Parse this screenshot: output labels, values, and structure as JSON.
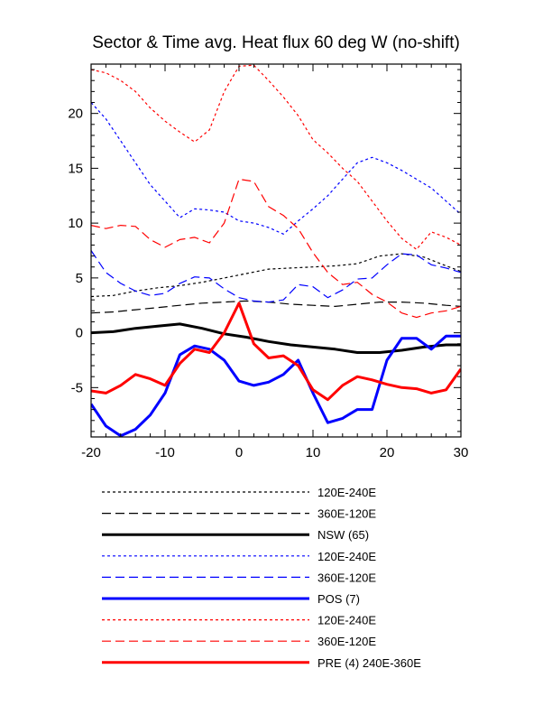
{
  "chart_data": {
    "type": "line",
    "title": "Sector & Time avg. Heat flux 60 deg W (no-shift)",
    "xlabel": "",
    "ylabel": "",
    "xlim": [
      -20,
      30
    ],
    "ylim": [
      -9.5,
      24.5
    ],
    "xticks": [
      -20,
      -10,
      0,
      10,
      20,
      30
    ],
    "yticks": [
      -5,
      0,
      5,
      10,
      15,
      20
    ],
    "grid": false,
    "legend_position": "below",
    "series": [
      {
        "label": "120E-240E",
        "color": "#000000",
        "style": "dotted",
        "width": 1.2,
        "x": [
          -20,
          -17,
          -14,
          -11,
          -8,
          -5,
          -2,
          1,
          4,
          7,
          10,
          13,
          16,
          19,
          22,
          25,
          28,
          30
        ],
        "y": [
          3.3,
          3.4,
          3.8,
          4.1,
          4.3,
          4.6,
          5.0,
          5.4,
          5.8,
          5.9,
          6.0,
          6.1,
          6.3,
          7.0,
          7.2,
          6.9,
          6.1,
          5.6
        ]
      },
      {
        "label": "360E-120E",
        "color": "#000000",
        "style": "dashed",
        "width": 1.2,
        "x": [
          -20,
          -17,
          -14,
          -11,
          -8,
          -5,
          -2,
          1,
          4,
          7,
          10,
          13,
          16,
          19,
          22,
          25,
          28,
          30
        ],
        "y": [
          1.8,
          1.9,
          2.1,
          2.3,
          2.5,
          2.7,
          2.8,
          2.9,
          2.8,
          2.6,
          2.5,
          2.4,
          2.6,
          2.8,
          2.8,
          2.7,
          2.5,
          2.4
        ]
      },
      {
        "label": "NSW (65)",
        "color": "#000000",
        "style": "solid",
        "width": 3,
        "x": [
          -20,
          -17,
          -14,
          -11,
          -8,
          -5,
          -2,
          1,
          4,
          7,
          10,
          13,
          16,
          19,
          22,
          25,
          28,
          30
        ],
        "y": [
          0.0,
          0.1,
          0.4,
          0.6,
          0.8,
          0.4,
          -0.1,
          -0.4,
          -0.8,
          -1.1,
          -1.3,
          -1.5,
          -1.8,
          -1.8,
          -1.6,
          -1.3,
          -1.1,
          -1.1
        ]
      },
      {
        "label": "120E-240E",
        "color": "#0000ff",
        "style": "dotted",
        "width": 1.2,
        "x": [
          -20,
          -18,
          -16,
          -14,
          -12,
          -10,
          -8,
          -6,
          -4,
          -2,
          0,
          2,
          4,
          6,
          8,
          10,
          12,
          14,
          16,
          18,
          20,
          22,
          24,
          26,
          28,
          30
        ],
        "y": [
          21.0,
          19.5,
          17.5,
          15.5,
          13.5,
          12.0,
          10.5,
          11.3,
          11.2,
          11.0,
          10.2,
          10.0,
          9.6,
          9.0,
          10.2,
          11.3,
          12.5,
          14.0,
          15.5,
          16.0,
          15.5,
          14.8,
          14.0,
          13.2,
          12.0,
          10.8
        ]
      },
      {
        "label": "360E-120E",
        "color": "#0000ff",
        "style": "dashed",
        "width": 1.2,
        "x": [
          -20,
          -18,
          -16,
          -14,
          -12,
          -10,
          -8,
          -6,
          -4,
          -2,
          0,
          2,
          4,
          6,
          8,
          10,
          12,
          14,
          16,
          18,
          20,
          22,
          24,
          26,
          28,
          30
        ],
        "y": [
          7.5,
          5.5,
          4.5,
          3.8,
          3.4,
          3.6,
          4.5,
          5.1,
          5.0,
          4.0,
          3.2,
          2.9,
          2.8,
          3.0,
          4.4,
          4.2,
          3.2,
          3.9,
          4.9,
          5.0,
          6.2,
          7.2,
          7.1,
          6.2,
          5.9,
          5.5
        ]
      },
      {
        "label": "POS (7)",
        "color": "#0000ff",
        "style": "solid",
        "width": 3,
        "x": [
          -20,
          -18,
          -16,
          -14,
          -12,
          -10,
          -8,
          -6,
          -4,
          -2,
          0,
          2,
          4,
          6,
          8,
          10,
          12,
          14,
          16,
          18,
          20,
          22,
          24,
          26,
          28,
          30
        ],
        "y": [
          -6.5,
          -8.5,
          -9.4,
          -8.8,
          -7.5,
          -5.5,
          -2.0,
          -1.2,
          -1.5,
          -2.5,
          -4.4,
          -4.8,
          -4.5,
          -3.8,
          -2.5,
          -5.5,
          -8.2,
          -7.8,
          -7.0,
          -7.0,
          -2.5,
          -0.5,
          -0.5,
          -1.5,
          -0.3,
          -0.3
        ]
      },
      {
        "label": "120E-240E",
        "color": "#ff0000",
        "style": "dotted",
        "width": 1.2,
        "x": [
          -20,
          -18,
          -16,
          -14,
          -12,
          -10,
          -8,
          -6,
          -4,
          -2,
          0,
          2,
          4,
          6,
          8,
          10,
          12,
          14,
          16,
          18,
          20,
          22,
          24,
          26,
          28,
          30
        ],
        "y": [
          24.0,
          23.7,
          23.0,
          22.0,
          20.5,
          19.3,
          18.3,
          17.4,
          18.5,
          22.0,
          24.3,
          24.4,
          23.0,
          21.5,
          19.8,
          17.6,
          16.4,
          15.0,
          13.8,
          12.0,
          10.2,
          8.6,
          7.6,
          9.2,
          8.7,
          8.0
        ]
      },
      {
        "label": "360E-120E",
        "color": "#ff0000",
        "style": "dashed",
        "width": 1.2,
        "x": [
          -20,
          -18,
          -16,
          -14,
          -12,
          -10,
          -8,
          -6,
          -4,
          -2,
          0,
          2,
          4,
          6,
          8,
          10,
          12,
          14,
          16,
          18,
          20,
          22,
          24,
          26,
          28,
          30
        ],
        "y": [
          9.8,
          9.5,
          9.8,
          9.7,
          8.5,
          7.8,
          8.5,
          8.7,
          8.2,
          10.0,
          14.0,
          13.8,
          11.5,
          10.7,
          9.5,
          7.3,
          5.5,
          4.4,
          4.6,
          3.5,
          2.8,
          1.8,
          1.4,
          1.8,
          2.0,
          2.4
        ]
      },
      {
        "label": "PRE (4) 240E-360E",
        "color": "#ff0000",
        "style": "solid",
        "width": 3,
        "x": [
          -20,
          -18,
          -16,
          -14,
          -12,
          -10,
          -8,
          -6,
          -4,
          -2,
          0,
          2,
          4,
          6,
          8,
          10,
          12,
          14,
          16,
          18,
          20,
          22,
          24,
          26,
          28,
          30
        ],
        "y": [
          -5.3,
          -5.5,
          -4.8,
          -3.8,
          -4.2,
          -4.8,
          -2.8,
          -1.5,
          -1.8,
          0.0,
          2.7,
          -1.0,
          -2.3,
          -2.1,
          -3.0,
          -5.2,
          -6.1,
          -4.8,
          -4.0,
          -4.3,
          -4.7,
          -5.0,
          -5.1,
          -5.5,
          -5.2,
          -3.3
        ]
      }
    ]
  }
}
